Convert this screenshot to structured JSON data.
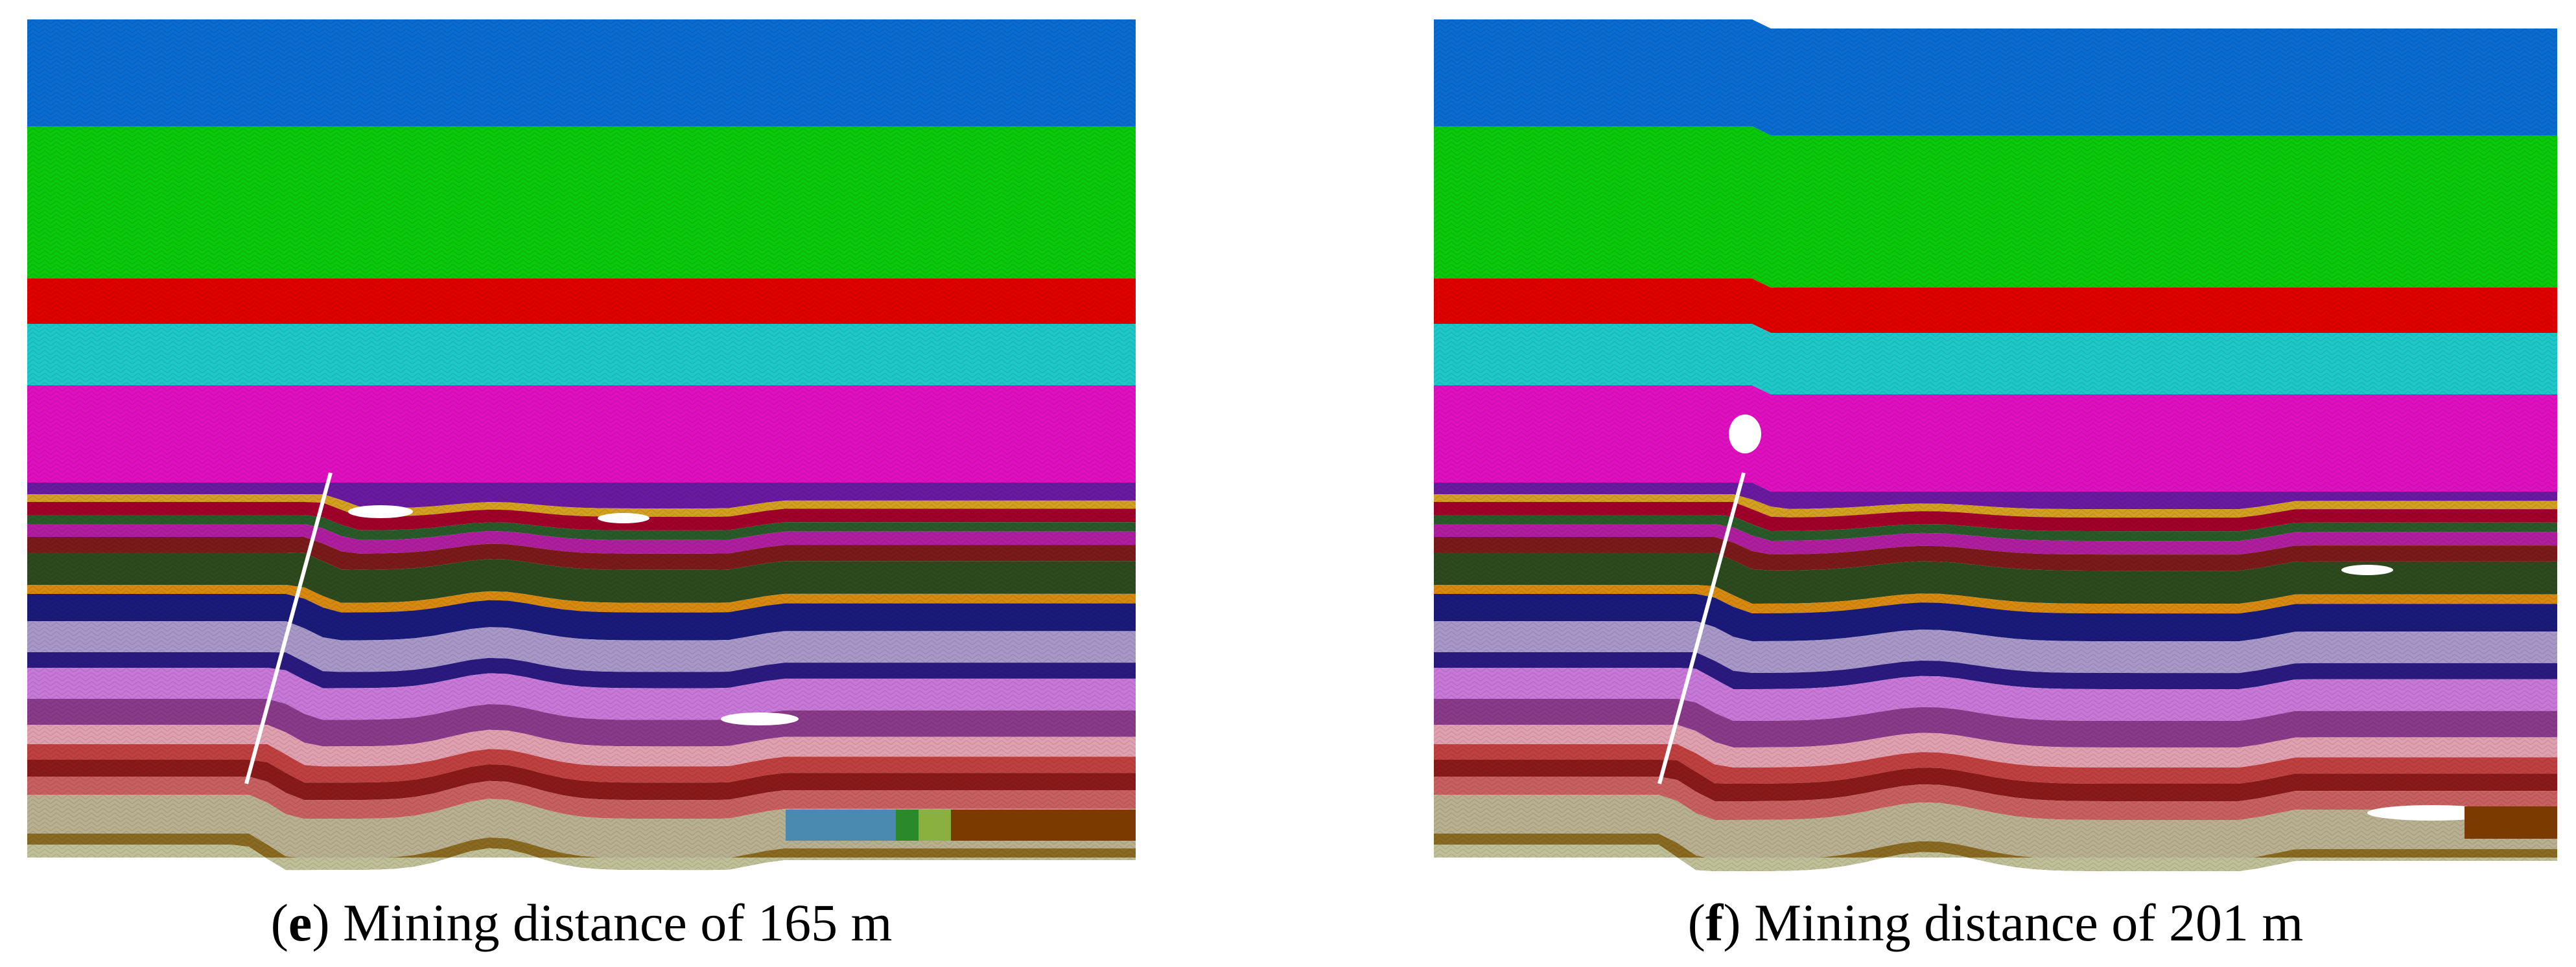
{
  "figure": {
    "panels": [
      {
        "id": "e",
        "caption_letter": "e",
        "caption_text": "Mining distance of 165 m"
      },
      {
        "id": "f",
        "caption_letter": "f",
        "caption_text": "Mining distance of 201 m"
      }
    ],
    "strata_colors_top_to_bottom": [
      "#0a6bd0",
      "#0ac80a",
      "#e00000",
      "#1ec8c8",
      "#e010c0",
      "#6a1aa0",
      "#d4a020",
      "#a0002a",
      "#2a5a2a",
      "#b01ea0",
      "#7a1a1a",
      "#2d4a1e",
      "#d88a10",
      "#1a1a7a",
      "#a898c8",
      "#2a1a80",
      "#c878d8",
      "#8a3a8a",
      "#e0a0b0",
      "#c04040",
      "#8a1a1a",
      "#c86060",
      "#b8b090",
      "#8a6a20",
      "#c0c098"
    ],
    "accent_colors": {
      "void": "#ffffff",
      "coal_seam_brown": "#7a3a00",
      "caved_zone_blue": "#4a8ab0",
      "caved_zone_green": "#2a8a2a"
    }
  }
}
